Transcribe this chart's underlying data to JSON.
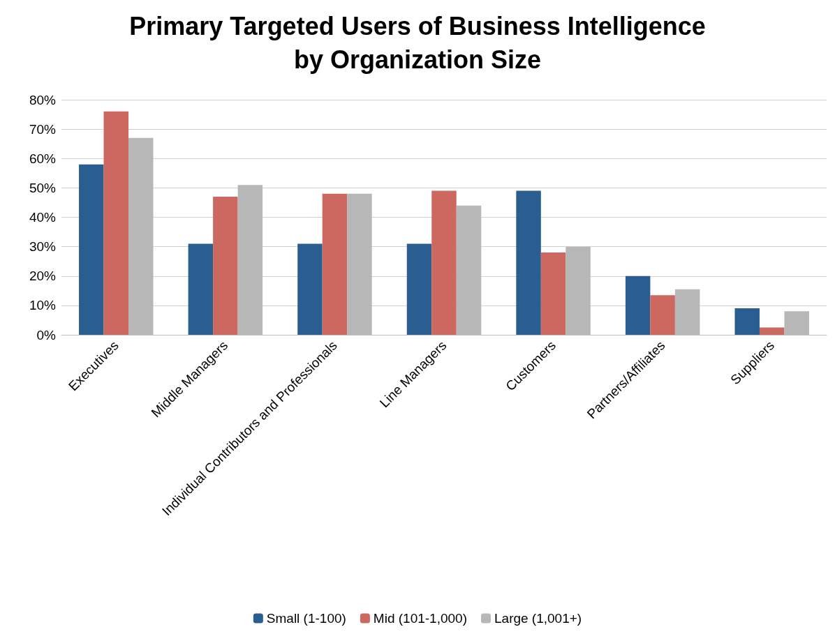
{
  "chart_data": {
    "type": "bar",
    "title": "Primary Targeted Users of Business Intelligence\nby Organization Size",
    "categories": [
      "Executives",
      "Middle Managers",
      "Individual Contributors and Professionals",
      "Line Managers",
      "Customers",
      "Partners/Affiliates",
      "Suppliers"
    ],
    "series": [
      {
        "name": "Small (1-100)",
        "color": "#2a5e91",
        "values": [
          58,
          31,
          31,
          31,
          49,
          20,
          9
        ]
      },
      {
        "name": "Mid (101-1,000)",
        "color": "#cd6860",
        "values": [
          76,
          47,
          48,
          49,
          28,
          13.5,
          2.5
        ]
      },
      {
        "name": "Large (1,001+)",
        "color": "#b7b7b7",
        "values": [
          67,
          51,
          48,
          44,
          30,
          15.5,
          8
        ]
      }
    ],
    "ylim": [
      0,
      80
    ],
    "yticks": [
      {
        "value": 0,
        "label": "0%"
      },
      {
        "value": 10,
        "label": "10%"
      },
      {
        "value": 20,
        "label": "20%"
      },
      {
        "value": 30,
        "label": "30%"
      },
      {
        "value": 40,
        "label": "40%"
      },
      {
        "value": 50,
        "label": "50%"
      },
      {
        "value": 60,
        "label": "60%"
      },
      {
        "value": 70,
        "label": "70%"
      },
      {
        "value": 80,
        "label": "80%"
      }
    ],
    "grid": "y",
    "legend": "bottom"
  }
}
